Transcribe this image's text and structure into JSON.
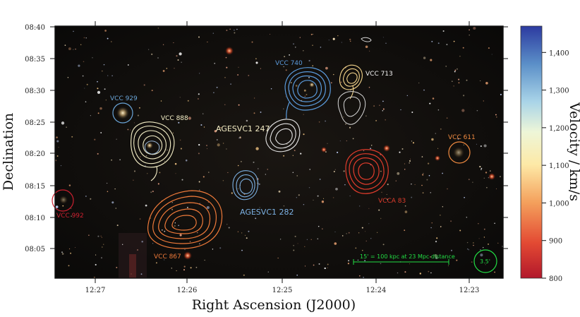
{
  "chart_data": {
    "type": "scatter",
    "title": "",
    "xlabel": "Right Ascension (J2000)",
    "ylabel": "Declination",
    "colorbar_label": "Velocity / km/s",
    "x_ticks": [
      "12:27",
      "12:26",
      "12:25",
      "12:24",
      "12:23"
    ],
    "y_ticks": [
      "08:40",
      "08:35",
      "08:30",
      "08:25",
      "08:20",
      "08:15",
      "08:10",
      "08:05"
    ],
    "colorbar_ticks": [
      "1,400",
      "1,300",
      "1,200",
      "1,100",
      "1,000",
      "900",
      "800"
    ],
    "colorbar_range": [
      800,
      1470
    ],
    "background": "optical sky image (dark field with stars)",
    "scale_bar": "15' = 100 kpc at 23 Mpc distance",
    "beam_label": "3.5'",
    "sources": [
      {
        "name": "VCC 740",
        "ra_min": 24.8,
        "dec_min": 29.8,
        "velocity": 1330,
        "color": "#5b9bdc",
        "contour": true
      },
      {
        "name": "VCC 713",
        "ra_min": 24.25,
        "dec_min": 30.5,
        "velocity": 1120,
        "color": "#f2d38a",
        "contour": true
      },
      {
        "name": "VCC 929",
        "ra_min": 26.75,
        "dec_min": 26.5,
        "velocity": 1300,
        "color": "#6aa5d8",
        "contour": false
      },
      {
        "name": "VCC 888",
        "ra_min": 26.4,
        "dec_min": 21.5,
        "velocity": 1150,
        "color": "#f6f0c8",
        "contour": true
      },
      {
        "name": "AGESVC1 247",
        "ra_min": 25.0,
        "dec_min": 22.0,
        "velocity": 1190,
        "color": "#e6e6e6",
        "contour": true
      },
      {
        "name": "VCC 611",
        "ra_min": 23.0,
        "dec_min": 20.0,
        "velocity": 980,
        "color": "#f08a40",
        "contour": false
      },
      {
        "name": "VCCA 83",
        "ra_min": 24.1,
        "dec_min": 18.5,
        "velocity": 820,
        "color": "#e03c2c",
        "contour": true
      },
      {
        "name": "AGESVC1 282",
        "ra_min": 25.5,
        "dec_min": 14.8,
        "velocity": 1330,
        "color": "#7cb1e3",
        "contour": true
      },
      {
        "name": "VCC 992",
        "ra_min": 27.35,
        "dec_min": 11.0,
        "velocity": 800,
        "color": "#cc2030",
        "contour": false
      },
      {
        "name": "VCC 867",
        "ra_min": 26.0,
        "dec_min": 10.5,
        "velocity": 960,
        "color": "#ee7a3a",
        "contour": true
      }
    ]
  }
}
